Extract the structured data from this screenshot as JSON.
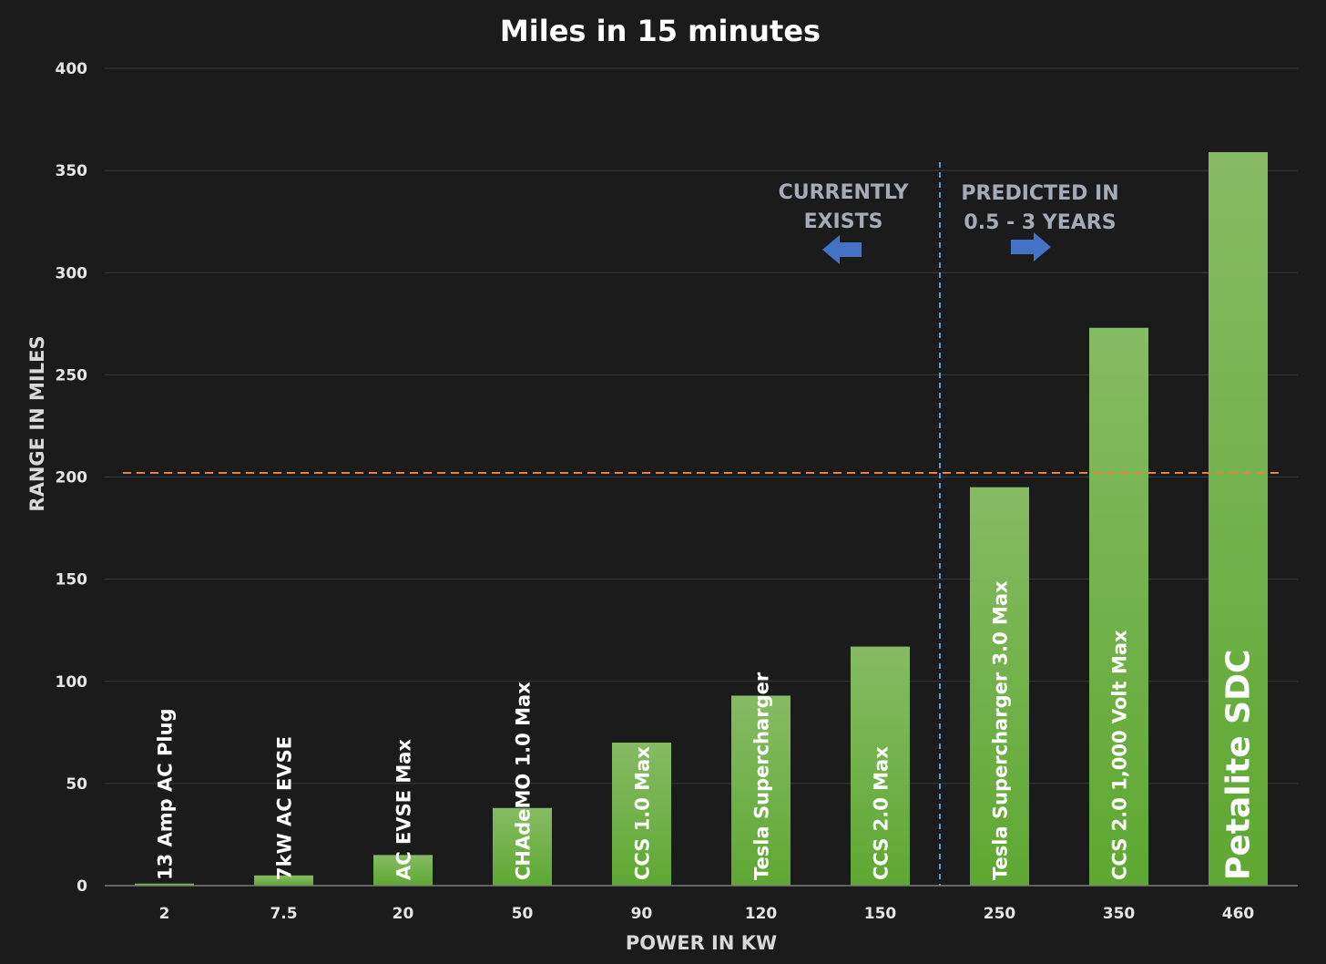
{
  "chart_data": {
    "type": "bar",
    "title": "Miles in 15 minutes",
    "xlabel": "POWER IN KW",
    "ylabel": "RANGE IN MILES",
    "ylim": [
      0,
      400
    ],
    "yticks": [
      0,
      50,
      100,
      150,
      200,
      250,
      300,
      350,
      400
    ],
    "grid": true,
    "categories": [
      "2",
      "7.5",
      "20",
      "50",
      "90",
      "120",
      "150",
      "250",
      "350",
      "460"
    ],
    "values": [
      1,
      5,
      15,
      38,
      70,
      93,
      117,
      195,
      273,
      359
    ],
    "bar_labels": [
      "13 Amp AC Plug",
      "7kW AC EVSE",
      "AC EVSE Max",
      "CHAdeMO 1.0 Max",
      "CCS 1.0 Max",
      "Tesla Supercharger",
      "CCS 2.0 Max",
      "Tesla Supercharger 3.0 Max",
      "CCS 2.0 1,000 Volt Max",
      "Petalite SDC"
    ],
    "reference_line": {
      "y": 202,
      "color": "#e8823a",
      "style": "dashed"
    },
    "divider": {
      "between": [
        "150",
        "250"
      ],
      "color": "#5b9bd5",
      "style": "dashed"
    },
    "annotations": {
      "left": {
        "lines": [
          "CURRENTLY",
          "EXISTS"
        ],
        "arrow": "left"
      },
      "right": {
        "lines": [
          "PREDICTED IN",
          "0.5 - 3 YEARS"
        ],
        "arrow": "right"
      }
    },
    "colors": {
      "background": "#1b1b1c",
      "bar_top": "#86bb63",
      "bar_bottom": "#5ea832",
      "arrow": "#4472c4",
      "grid": "#3a3a3c"
    }
  }
}
